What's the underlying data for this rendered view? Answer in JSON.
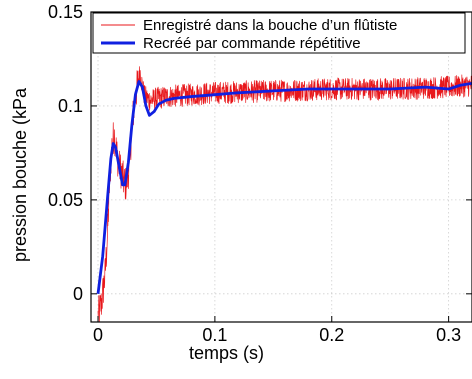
{
  "chart_data": {
    "type": "line",
    "xlabel": "temps (s)",
    "ylabel": "pression bouche (kPa",
    "xlim": [
      -0.006,
      0.32
    ],
    "ylim": [
      -0.015,
      0.15
    ],
    "grid": true,
    "legend_placement": "top-left",
    "x_ticks": [
      {
        "value": 0,
        "label": "0"
      },
      {
        "value": 0.1,
        "label": "0.1"
      },
      {
        "value": 0.2,
        "label": "0.2"
      },
      {
        "value": 0.3,
        "label": "0.3"
      }
    ],
    "y_ticks": [
      {
        "value": 0,
        "label": "0"
      },
      {
        "value": 0.05,
        "label": "0.05"
      },
      {
        "value": 0.1,
        "label": "0.1"
      },
      {
        "value": 0.15,
        "label": "0.15"
      }
    ],
    "series": [
      {
        "name": "Enregistré dans la bouche d’un flûtiste",
        "color": "#e8171b",
        "line_style": "thin",
        "noise_amplitude": 0.006,
        "points": [
          [
            0,
            -0.012
          ],
          [
            0.003,
            -0.005
          ],
          [
            0.006,
            0.01
          ],
          [
            0.008,
            0.03
          ],
          [
            0.01,
            0.06
          ],
          [
            0.012,
            0.08
          ],
          [
            0.014,
            0.085
          ],
          [
            0.016,
            0.075
          ],
          [
            0.018,
            0.068
          ],
          [
            0.02,
            0.065
          ],
          [
            0.022,
            0.06
          ],
          [
            0.024,
            0.058
          ],
          [
            0.026,
            0.065
          ],
          [
            0.028,
            0.08
          ],
          [
            0.03,
            0.095
          ],
          [
            0.032,
            0.105
          ],
          [
            0.034,
            0.112
          ],
          [
            0.036,
            0.118
          ],
          [
            0.038,
            0.11
          ],
          [
            0.04,
            0.105
          ],
          [
            0.045,
            0.103
          ],
          [
            0.05,
            0.104
          ],
          [
            0.06,
            0.105
          ],
          [
            0.08,
            0.106
          ],
          [
            0.1,
            0.107
          ],
          [
            0.15,
            0.108
          ],
          [
            0.2,
            0.109
          ],
          [
            0.25,
            0.109
          ],
          [
            0.3,
            0.11
          ],
          [
            0.32,
            0.111
          ]
        ]
      },
      {
        "name": "Recréé par commande répétitive",
        "color": "#1020e0",
        "line_style": "thick",
        "points": [
          [
            0,
            0
          ],
          [
            0.004,
            0.02
          ],
          [
            0.008,
            0.05
          ],
          [
            0.011,
            0.072
          ],
          [
            0.013,
            0.08
          ],
          [
            0.015,
            0.078
          ],
          [
            0.018,
            0.068
          ],
          [
            0.021,
            0.058
          ],
          [
            0.023,
            0.058
          ],
          [
            0.026,
            0.07
          ],
          [
            0.029,
            0.09
          ],
          [
            0.032,
            0.106
          ],
          [
            0.035,
            0.113
          ],
          [
            0.038,
            0.11
          ],
          [
            0.041,
            0.1
          ],
          [
            0.044,
            0.095
          ],
          [
            0.048,
            0.097
          ],
          [
            0.052,
            0.101
          ],
          [
            0.058,
            0.103
          ],
          [
            0.065,
            0.104
          ],
          [
            0.08,
            0.105
          ],
          [
            0.1,
            0.106
          ],
          [
            0.12,
            0.107
          ],
          [
            0.15,
            0.108
          ],
          [
            0.18,
            0.109
          ],
          [
            0.2,
            0.109
          ],
          [
            0.25,
            0.109
          ],
          [
            0.28,
            0.11
          ],
          [
            0.3,
            0.109
          ],
          [
            0.31,
            0.111
          ],
          [
            0.32,
            0.112
          ]
        ]
      }
    ]
  }
}
